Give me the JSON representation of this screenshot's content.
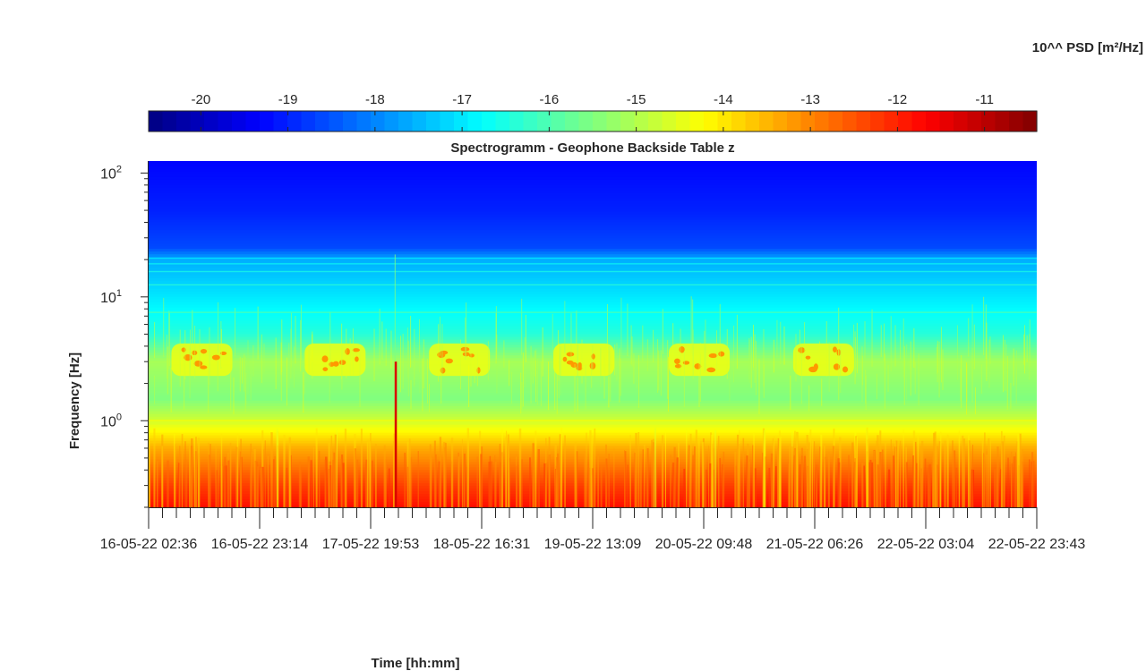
{
  "chart_data": {
    "type": "heatmap",
    "title": "Spectrogramm - Geophone Backside Table z",
    "xlabel": "Time [hh:mm]",
    "ylabel": "Frequency [Hz]",
    "y_scale": "log",
    "ylim": [
      0.2,
      125
    ],
    "y_tick_labels": [
      {
        "base": "10",
        "exp": "2",
        "value": 100
      },
      {
        "base": "10",
        "exp": "1",
        "value": 10
      },
      {
        "base": "10",
        "exp": "0",
        "value": 1
      }
    ],
    "x_tick_labels": [
      "16-05-22 02:36",
      "16-05-22 23:14",
      "17-05-22 19:53",
      "18-05-22 16:31",
      "19-05-22 13:09",
      "20-05-22 09:48",
      "21-05-22 06:26",
      "22-05-22 03:04",
      "22-05-22 23:43"
    ],
    "colorbar": {
      "label": "10^^ PSD [m²/Hz]",
      "range": [
        -20.6,
        -10.4
      ],
      "tick_labels": [
        "-20",
        "-19",
        "-18",
        "-17",
        "-16",
        "-15",
        "-14",
        "-13",
        "-12",
        "-11"
      ],
      "tick_values": [
        -20,
        -19,
        -18,
        -17,
        -16,
        -15,
        -14,
        -13,
        -12,
        -11
      ],
      "colormap": "jet",
      "colors": [
        "#000080",
        "#0000ff",
        "#00ffff",
        "#ffff00",
        "#ff0000",
        "#800000"
      ]
    },
    "approx_psd_by_frequency": [
      {
        "hz": 125,
        "log10_psd": -19.3
      },
      {
        "hz": 50,
        "log10_psd": -19.0
      },
      {
        "hz": 25,
        "log10_psd": -18.6
      },
      {
        "hz": 20,
        "log10_psd": -17.6
      },
      {
        "hz": 10,
        "log10_psd": -17.0
      },
      {
        "hz": 5,
        "log10_psd": -16.4
      },
      {
        "hz": 3,
        "log10_psd": -15.1
      },
      {
        "hz": 1.5,
        "log10_psd": -15.5
      },
      {
        "hz": 1,
        "log10_psd": -14.7
      },
      {
        "hz": 0.6,
        "log10_psd": -13.4
      },
      {
        "hz": 0.3,
        "log10_psd": -12.3
      },
      {
        "hz": 0.2,
        "log10_psd": -11.8
      }
    ],
    "daily_activity_bands": {
      "frequency_range_hz": [
        2.3,
        4.2
      ],
      "log10_psd": -14.4,
      "at_x_tick_label_fractions": [
        0.06,
        0.21,
        0.35,
        0.49,
        0.62,
        0.76
      ]
    },
    "grid": false,
    "legend": "none"
  }
}
